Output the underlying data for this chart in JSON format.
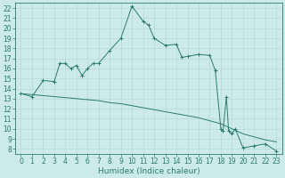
{
  "title": "",
  "xlabel": "Humidex (Indice chaleur)",
  "ylabel": "",
  "background_color": "#cceae7",
  "line_color": "#2d7b6e",
  "grid_color": "#b0d8d2",
  "xlim": [
    -0.5,
    23.5
  ],
  "ylim": [
    7.5,
    22.5
  ],
  "xticks": [
    0,
    1,
    2,
    3,
    4,
    5,
    6,
    7,
    8,
    9,
    10,
    11,
    12,
    13,
    14,
    15,
    16,
    17,
    18,
    19,
    20,
    21,
    22,
    23
  ],
  "yticks": [
    8,
    9,
    10,
    11,
    12,
    13,
    14,
    15,
    16,
    17,
    18,
    19,
    20,
    21,
    22
  ],
  "curve1_x": [
    0,
    1,
    2,
    3,
    3.5,
    4,
    4.5,
    5,
    5.5,
    6,
    6.5,
    7,
    8,
    9,
    10,
    11,
    11.5,
    12,
    13,
    14,
    14.5,
    15,
    16,
    17,
    17.5,
    18,
    18.2,
    18.5,
    18.7,
    19,
    19.3,
    20,
    21,
    22,
    23
  ],
  "curve1_y": [
    13.5,
    13.2,
    14.8,
    14.7,
    16.5,
    16.5,
    16.0,
    16.3,
    15.3,
    16.0,
    16.5,
    16.5,
    17.8,
    19.0,
    22.2,
    20.7,
    20.3,
    19.0,
    18.3,
    18.4,
    17.1,
    17.2,
    17.4,
    17.3,
    15.8,
    10.0,
    9.8,
    13.2,
    9.8,
    9.5,
    10.0,
    8.1,
    8.3,
    8.5,
    7.8
  ],
  "curve2_x": [
    0,
    1,
    2,
    3,
    4,
    5,
    6,
    7,
    8,
    9,
    10,
    11,
    12,
    13,
    14,
    15,
    16,
    17,
    18,
    19,
    20,
    21,
    22,
    23
  ],
  "curve2_y": [
    13.5,
    13.4,
    13.3,
    13.2,
    13.1,
    13.0,
    12.9,
    12.8,
    12.6,
    12.5,
    12.3,
    12.1,
    11.9,
    11.7,
    11.5,
    11.3,
    11.1,
    10.8,
    10.5,
    10.0,
    9.5,
    9.2,
    8.9,
    8.7
  ],
  "tick_fontsize": 5.5,
  "xlabel_fontsize": 6.5
}
